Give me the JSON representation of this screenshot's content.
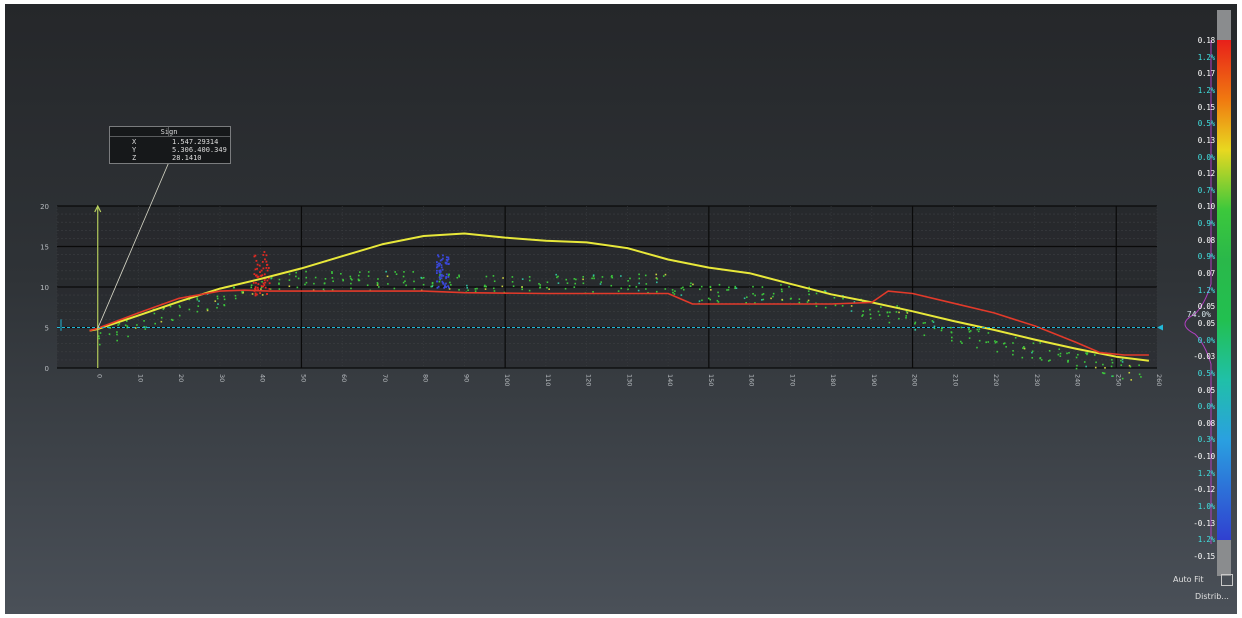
{
  "view": {
    "background_top": "#25272a",
    "background_bottom": "#4a5058"
  },
  "tooltip": {
    "header": "Sign",
    "rows": [
      {
        "key": "X",
        "value": "1.547.29314"
      },
      {
        "key": "Y",
        "value": "5.306.400.349"
      },
      {
        "key": "Z",
        "value": "28.1410"
      }
    ]
  },
  "chart_data": {
    "type": "line",
    "y_tick_labels": [
      "20",
      "15",
      "10",
      "5",
      "0"
    ],
    "x_tick_labels": [
      "0",
      "10",
      "20",
      "30",
      "40",
      "50",
      "60",
      "70",
      "80",
      "90",
      "100",
      "110",
      "120",
      "130",
      "140",
      "150",
      "160",
      "170",
      "180",
      "190",
      "200",
      "210",
      "220",
      "230",
      "240",
      "250",
      "260"
    ],
    "series": [
      {
        "color": "#e8e83a",
        "x": [
          -2,
          0,
          10,
          20,
          30,
          40,
          50,
          60,
          70,
          80,
          90,
          100,
          110,
          120,
          130,
          140,
          150,
          160,
          170,
          180,
          190,
          200,
          210,
          220,
          230,
          240,
          250,
          258
        ],
        "y": [
          4.6,
          4.8,
          6.5,
          8.2,
          9.8,
          11.0,
          12.3,
          13.8,
          15.3,
          16.3,
          16.6,
          16.1,
          15.7,
          15.5,
          14.8,
          13.4,
          12.4,
          11.7,
          10.4,
          9.1,
          8.1,
          7.0,
          5.8,
          4.7,
          3.5,
          2.4,
          1.4,
          0.9
        ]
      },
      {
        "color": "#e23a2a",
        "x": [
          -2,
          0,
          10,
          20,
          30,
          36,
          42,
          60,
          80,
          90,
          110,
          130,
          140,
          146,
          150,
          160,
          170,
          180,
          190,
          194,
          200,
          210,
          220,
          230,
          240,
          246,
          252,
          258
        ],
        "y": [
          4.6,
          4.9,
          6.8,
          8.6,
          9.5,
          9.6,
          9.5,
          9.5,
          9.5,
          9.3,
          9.2,
          9.2,
          9.2,
          7.9,
          7.9,
          7.9,
          7.9,
          7.9,
          8.1,
          9.5,
          9.2,
          8.0,
          6.8,
          5.2,
          3.2,
          1.9,
          1.6,
          1.6
        ]
      }
    ],
    "cyan_line_y": 5
  },
  "colorbar": {
    "labels": [
      {
        "text": "0.18",
        "color": "#ffffff"
      },
      {
        "text": "1.2%",
        "color": "#40e0e0"
      },
      {
        "text": "0.17",
        "color": "#ffffff"
      },
      {
        "text": "1.2%",
        "color": "#40e0e0"
      },
      {
        "text": "0.15",
        "color": "#ffffff"
      },
      {
        "text": "0.5%",
        "color": "#40e0e0"
      },
      {
        "text": "0.13",
        "color": "#ffffff"
      },
      {
        "text": "0.0%",
        "color": "#40e0e0"
      },
      {
        "text": "0.12",
        "color": "#ffffff"
      },
      {
        "text": "0.7%",
        "color": "#40e0e0"
      },
      {
        "text": "0.10",
        "color": "#ffffff"
      },
      {
        "text": "0.9%",
        "color": "#40e0e0"
      },
      {
        "text": "0.08",
        "color": "#ffffff"
      },
      {
        "text": "0.9%",
        "color": "#40e0e0"
      },
      {
        "text": "0.07",
        "color": "#ffffff"
      },
      {
        "text": "1.2%",
        "color": "#40e0e0"
      },
      {
        "text": "0.05",
        "color": "#ffffff"
      },
      {
        "text": "0.05",
        "color": "#ffffff"
      },
      {
        "text": "0.0%",
        "color": "#40e0e0"
      },
      {
        "text": "-0.03",
        "color": "#ffffff"
      },
      {
        "text": "0.5%",
        "color": "#40e0e0"
      },
      {
        "text": "0.05",
        "color": "#ffffff"
      },
      {
        "text": "0.0%",
        "color": "#40e0e0"
      },
      {
        "text": "0.08",
        "color": "#ffffff"
      },
      {
        "text": "0.3%",
        "color": "#40e0e0"
      },
      {
        "text": "-0.10",
        "color": "#ffffff"
      },
      {
        "text": "1.2%",
        "color": "#40e0e0"
      },
      {
        "text": "-0.12",
        "color": "#ffffff"
      },
      {
        "text": "1.0%",
        "color": "#40e0e0"
      },
      {
        "text": "-0.13",
        "color": "#ffffff"
      },
      {
        "text": "1.2%",
        "color": "#40e0e0"
      },
      {
        "text": "-0.15",
        "color": "#ffffff"
      }
    ],
    "center_percent": "74.0%",
    "center_label": "0.03"
  },
  "controls": {
    "autofit_label": "Auto Fit",
    "autofit_checked": false,
    "distribution_label": "Distrib..."
  }
}
